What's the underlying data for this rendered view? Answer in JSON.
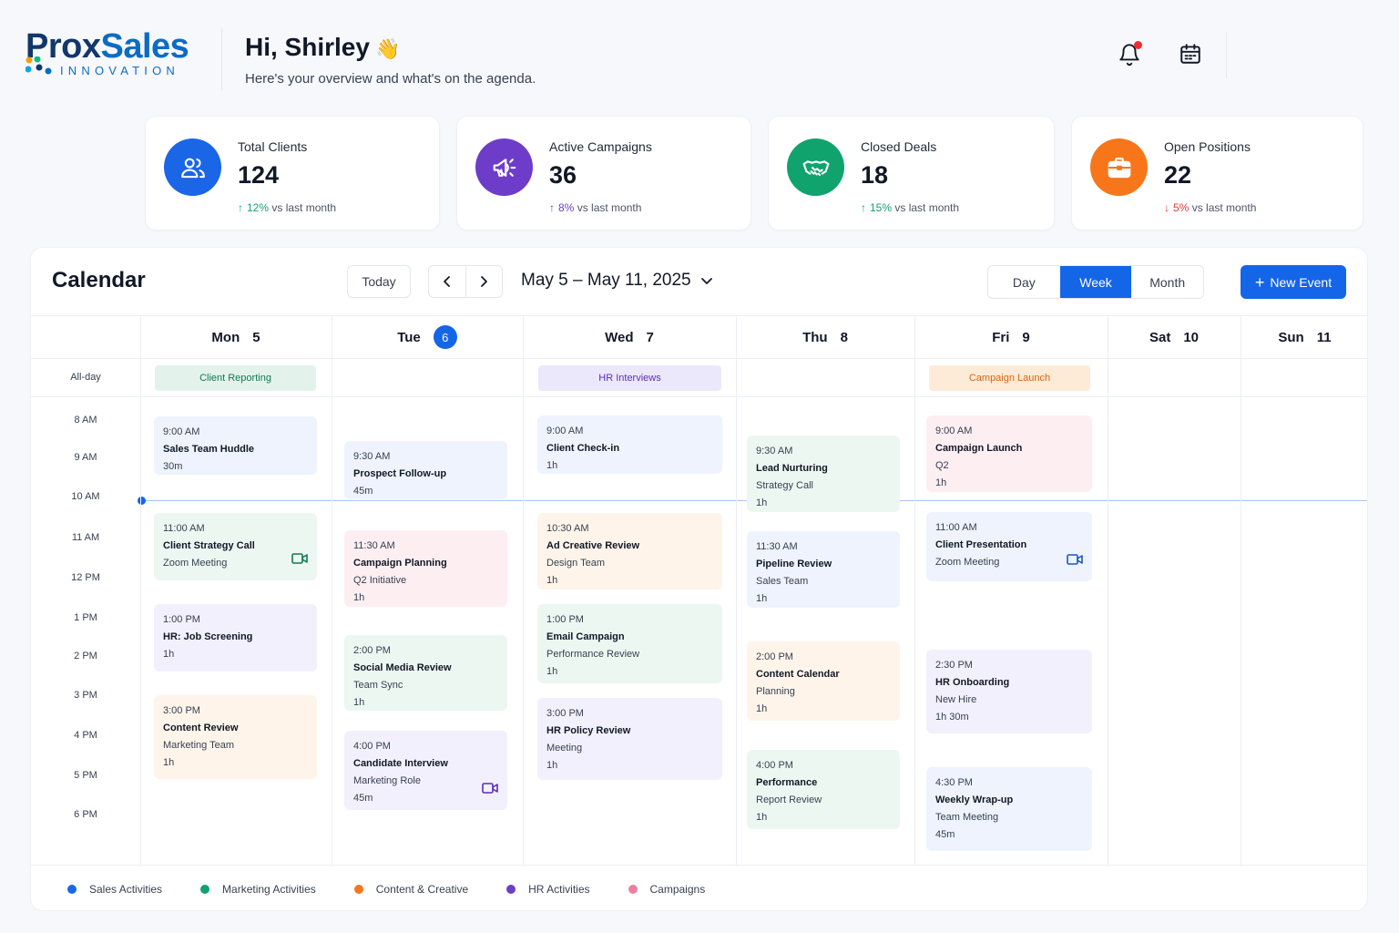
{
  "brand": {
    "name_part1": "Prox",
    "name_part2": "Sales",
    "tagline": "INNOVATION"
  },
  "header": {
    "greeting": "Hi, Shirley",
    "wave": "👋",
    "subtitle": "Here's your overview and what's on the agenda."
  },
  "stats": [
    {
      "label": "Total Clients",
      "value": "124",
      "pct": "12%",
      "suffix": "vs last month",
      "direction": "up",
      "color": "#1a66e6",
      "icon": "users-icon"
    },
    {
      "label": "Active Campaigns",
      "value": "36",
      "pct": "8%",
      "suffix": "vs last month",
      "direction": "up",
      "color": "#6d3dc9",
      "icon": "megaphone-icon"
    },
    {
      "label": "Closed Deals",
      "value": "18",
      "pct": "15%",
      "suffix": "vs last month",
      "direction": "up",
      "color": "#10a36e",
      "icon": "handshake-icon"
    },
    {
      "label": "Open Positions",
      "value": "22",
      "pct": "5%",
      "suffix": "vs last month",
      "direction": "down",
      "color": "#f7761a",
      "icon": "briefcase-icon"
    }
  ],
  "calendar": {
    "title": "Calendar",
    "today_label": "Today",
    "range": "May 5 – May 11, 2025",
    "views": [
      "Day",
      "Week",
      "Month"
    ],
    "active_view": "Week",
    "new_event_label": "New Event",
    "allday_label": "All-day",
    "days": [
      {
        "name": "Mon",
        "num": "5"
      },
      {
        "name": "Tue",
        "num": "6",
        "today": true
      },
      {
        "name": "Wed",
        "num": "7"
      },
      {
        "name": "Thu",
        "num": "8"
      },
      {
        "name": "Fri",
        "num": "9"
      },
      {
        "name": "Sat",
        "num": "10"
      },
      {
        "name": "Sun",
        "num": "11"
      }
    ],
    "times": [
      "8 AM",
      "9 AM",
      "10 AM",
      "11 AM",
      "12 PM",
      "1 PM",
      "2 PM",
      "3 PM",
      "4 PM",
      "5 PM",
      "6 PM"
    ],
    "allday_events": [
      {
        "day": 0,
        "title": "Client Reporting",
        "category": "green"
      },
      {
        "day": 2,
        "title": "HR Interviews",
        "category": "purple"
      },
      {
        "day": 4,
        "title": "Campaign Launch",
        "category": "orange"
      }
    ],
    "events": [
      {
        "day": 0,
        "time": "9:00 AM",
        "title": "Sales Team Huddle",
        "duration": "30m",
        "category": "blue"
      },
      {
        "day": 0,
        "time": "11:00 AM",
        "title": "Client Strategy Call",
        "sub": "Zoom Meeting",
        "category": "green",
        "video": true
      },
      {
        "day": 0,
        "time": "1:00 PM",
        "title": "HR: Job Screening",
        "duration": "1h",
        "category": "purple"
      },
      {
        "day": 0,
        "time": "3:00 PM",
        "title": "Content Review",
        "sub": "Marketing Team",
        "duration": "1h",
        "category": "orange"
      },
      {
        "day": 1,
        "time": "9:30 AM",
        "title": "Prospect Follow-up",
        "duration": "45m",
        "category": "blue"
      },
      {
        "day": 1,
        "time": "11:30 AM",
        "title": "Campaign Planning",
        "sub": "Q2 Initiative",
        "duration": "1h",
        "category": "pink"
      },
      {
        "day": 1,
        "time": "2:00 PM",
        "title": "Social Media Review",
        "sub": "Team Sync",
        "duration": "1h",
        "category": "green"
      },
      {
        "day": 1,
        "time": "4:00 PM",
        "title": "Candidate Interview",
        "sub": "Marketing Role",
        "duration": "45m",
        "category": "purple",
        "video": true
      },
      {
        "day": 2,
        "time": "9:00 AM",
        "title": "Client Check-in",
        "duration": "1h",
        "category": "blue"
      },
      {
        "day": 2,
        "time": "10:30 AM",
        "title": "Ad Creative Review",
        "sub": "Design Team",
        "duration": "1h",
        "category": "orange"
      },
      {
        "day": 2,
        "time": "1:00 PM",
        "title": "Email Campaign",
        "sub": "Performance Review",
        "duration": "1h",
        "category": "green"
      },
      {
        "day": 2,
        "time": "3:00 PM",
        "title": "HR Policy Review",
        "sub": "Meeting",
        "duration": "1h",
        "category": "purple"
      },
      {
        "day": 3,
        "time": "9:30 AM",
        "title": "Lead Nurturing",
        "sub": "Strategy Call",
        "duration": "1h",
        "category": "green"
      },
      {
        "day": 3,
        "time": "11:30 AM",
        "title": "Pipeline Review",
        "sub": "Sales Team",
        "duration": "1h",
        "category": "blue"
      },
      {
        "day": 3,
        "time": "2:00 PM",
        "title": "Content Calendar",
        "sub": "Planning",
        "duration": "1h",
        "category": "orange"
      },
      {
        "day": 3,
        "time": "4:00 PM",
        "title": "Performance",
        "sub": "Report Review",
        "duration": "1h",
        "category": "green"
      },
      {
        "day": 4,
        "time": "9:00 AM",
        "title": "Campaign Launch",
        "sub": "Q2",
        "duration": "1h",
        "category": "pink"
      },
      {
        "day": 4,
        "time": "11:00 AM",
        "title": "Client Presentation",
        "sub": "Zoom Meeting",
        "category": "blue",
        "video": true
      },
      {
        "day": 4,
        "time": "2:30 PM",
        "title": "HR Onboarding",
        "sub": "New Hire",
        "duration": "1h 30m",
        "category": "purple"
      },
      {
        "day": 4,
        "time": "4:30 PM",
        "title": "Weekly Wrap-up",
        "sub": "Team Meeting",
        "duration": "45m",
        "category": "blue"
      }
    ],
    "legend": [
      {
        "label": "Sales Activities",
        "color": "#1a66e6"
      },
      {
        "label": "Marketing Activities",
        "color": "#10a36e"
      },
      {
        "label": "Content & Creative",
        "color": "#f7761a"
      },
      {
        "label": "HR Activities",
        "color": "#6d3dc9"
      },
      {
        "label": "Campaigns",
        "color": "#ef7fa0"
      }
    ]
  }
}
